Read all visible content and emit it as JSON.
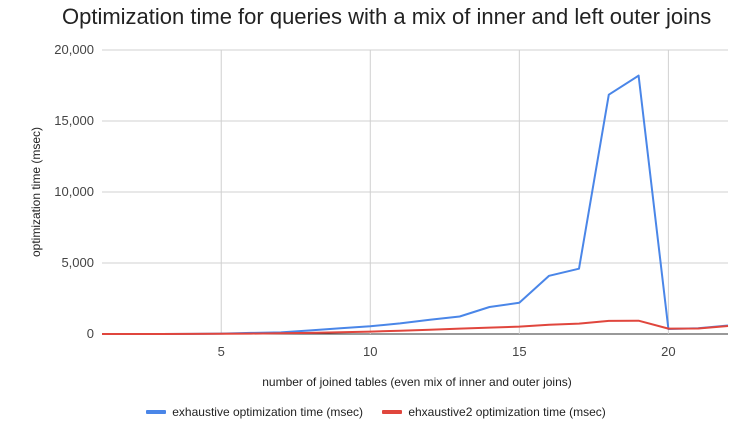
{
  "chart_data": {
    "type": "line",
    "title": "Optimization time for queries with a mix of inner and left outer joins",
    "xlabel": "number of joined tables (even mix of inner and outer joins)",
    "ylabel": "optimization time (msec)",
    "xlim": [
      1,
      22
    ],
    "ylim": [
      0,
      20000
    ],
    "xticks": [
      5,
      10,
      15,
      20
    ],
    "yticks": [
      0,
      5000,
      10000,
      15000,
      20000
    ],
    "ytick_labels": [
      "0",
      "5,000",
      "10,000",
      "15,000",
      "20,000"
    ],
    "grid": true,
    "legend_position": "bottom",
    "x": [
      1,
      2,
      3,
      4,
      5,
      6,
      7,
      8,
      9,
      10,
      11,
      12,
      13,
      14,
      15,
      16,
      17,
      18,
      19,
      20,
      21,
      22
    ],
    "series": [
      {
        "name": "exhaustive optimization time (msec)",
        "color": "#4a86e8",
        "values": [
          0,
          1,
          3,
          10,
          30,
          80,
          110,
          250,
          400,
          550,
          750,
          1000,
          1230,
          1900,
          2200,
          4100,
          4600,
          16850,
          18200,
          350,
          400,
          600
        ]
      },
      {
        "name": "ehxaustive2 optimization time (msec)",
        "color": "#e0463d",
        "values": [
          0,
          1,
          2,
          5,
          15,
          30,
          50,
          80,
          120,
          170,
          230,
          300,
          380,
          450,
          520,
          650,
          730,
          920,
          940,
          380,
          390,
          560
        ]
      }
    ]
  }
}
